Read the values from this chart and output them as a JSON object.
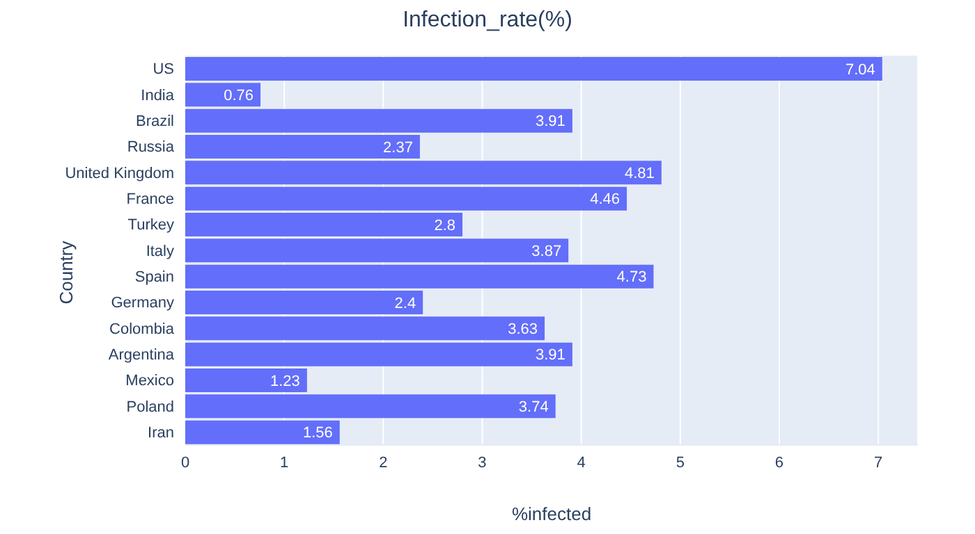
{
  "chart_data": {
    "type": "bar",
    "orientation": "horizontal",
    "title": "Infection_rate(%)",
    "xlabel": "%infected",
    "ylabel": "Country",
    "categories": [
      "US",
      "India",
      "Brazil",
      "Russia",
      "United Kingdom",
      "France",
      "Turkey",
      "Italy",
      "Spain",
      "Germany",
      "Colombia",
      "Argentina",
      "Mexico",
      "Poland",
      "Iran"
    ],
    "values": [
      7.04,
      0.76,
      3.91,
      2.37,
      4.81,
      4.46,
      2.8,
      3.87,
      4.73,
      2.4,
      3.63,
      3.91,
      1.23,
      3.74,
      1.56
    ],
    "color": "#636efa",
    "xlim": [
      0,
      7.4
    ],
    "xticks": [
      0,
      1,
      2,
      3,
      4,
      5,
      6,
      7
    ],
    "grid": "x",
    "data_labels": true
  }
}
